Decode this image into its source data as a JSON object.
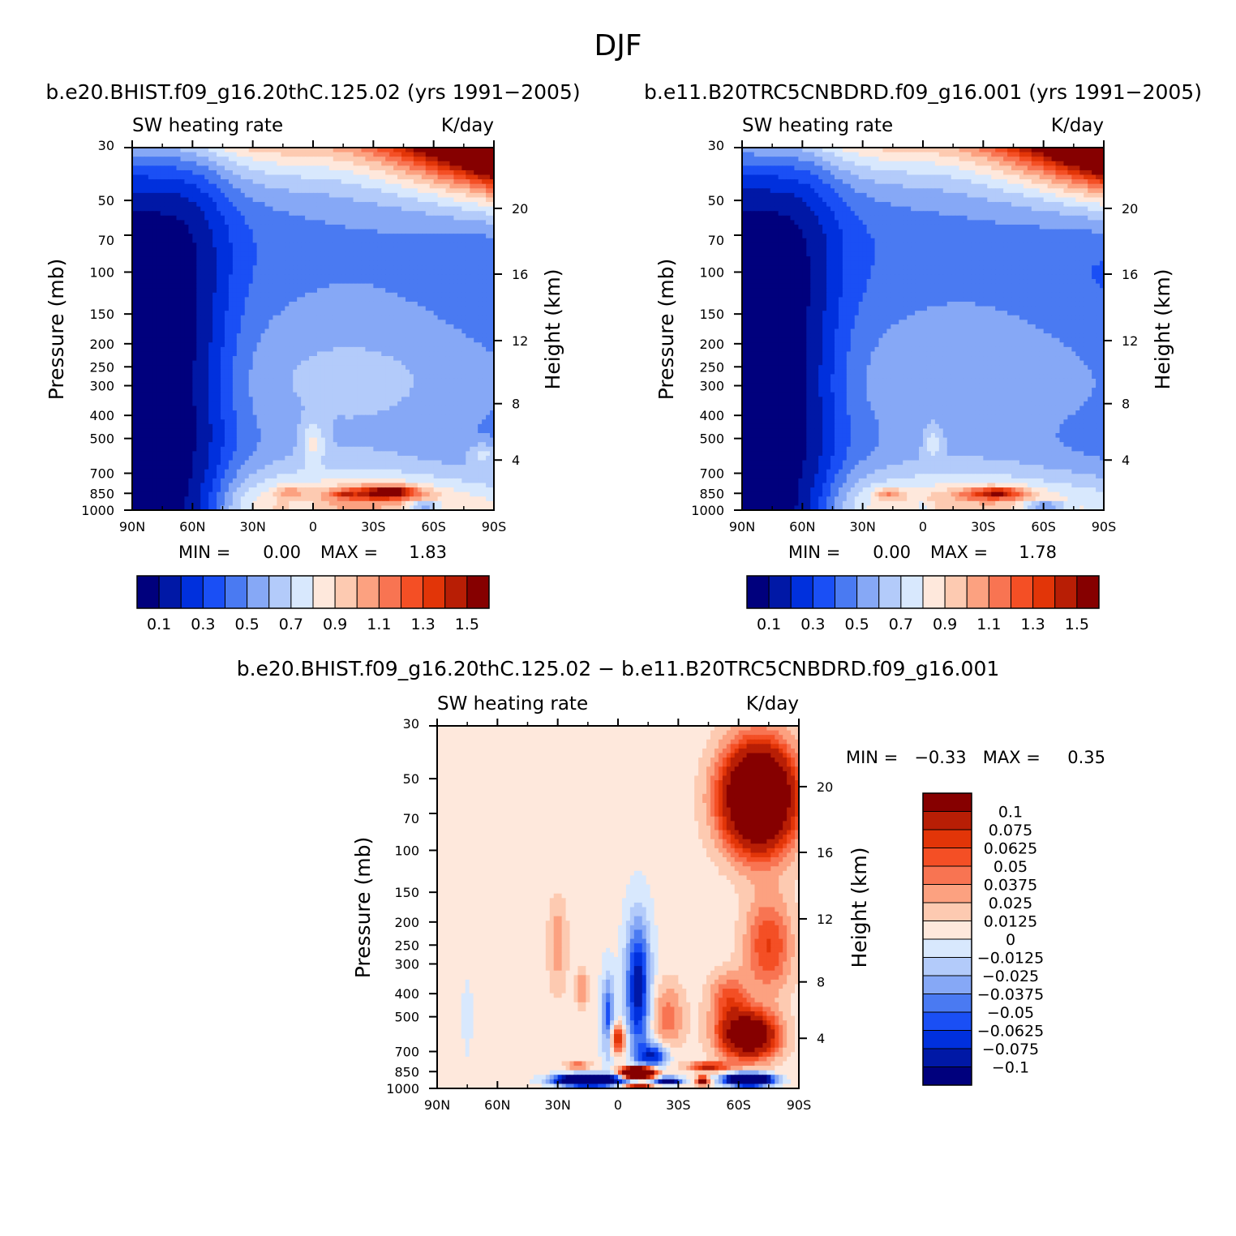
{
  "figure": {
    "super_title": "DJF",
    "bottom_stats_text": "MIN =   −0.33   MAX =     0.35"
  },
  "chart_data": [
    {
      "type": "heatmap",
      "id": "left",
      "title": "b.e20.BHIST.f09_g16.20thC.125.02 (yrs 1991−2005)",
      "left_label": "SW heating rate",
      "right_label": "K/day",
      "ylabel": "Pressure (mb)",
      "y2label": "Height (km)",
      "x_ticks": [
        "90N",
        "60N",
        "30N",
        "0",
        "30S",
        "60S",
        "90S"
      ],
      "x_values": [
        90,
        60,
        30,
        0,
        -30,
        -60,
        -90
      ],
      "xlim": [
        90,
        -90
      ],
      "y_scale": "log",
      "ylim": [
        1000,
        30
      ],
      "y_ticks": [
        30,
        50,
        70,
        100,
        150,
        200,
        250,
        300,
        400,
        500,
        700,
        850,
        1000
      ],
      "y2_ticks": [
        {
          "label": "20",
          "pressure": 54
        },
        {
          "label": "16",
          "pressure": 102
        },
        {
          "label": "12",
          "pressure": 194
        },
        {
          "label": "8",
          "pressure": 357
        },
        {
          "label": "4",
          "pressure": 616
        }
      ],
      "stats": {
        "min_label": "MIN =",
        "min": "0.00",
        "max_label": "MAX =",
        "max": "1.83"
      },
      "levels": [
        0.1,
        0.2,
        0.3,
        0.4,
        0.5,
        0.6,
        0.7,
        0.8,
        0.9,
        1.0,
        1.1,
        1.2,
        1.3,
        1.4,
        1.5
      ],
      "colorbar_labels": [
        "0.1",
        "0.3",
        "0.5",
        "0.7",
        "0.9",
        "1.1",
        "1.3",
        "1.5"
      ],
      "colors": [
        "#00007d",
        "#0018a6",
        "#0030dd",
        "#1a4ff5",
        "#4a7af2",
        "#86a8f6",
        "#b3cbfa",
        "#d8e8fd",
        "#fee8dc",
        "#fdcab1",
        "#fca180",
        "#f87452",
        "#f44f25",
        "#e23508",
        "#b81e05",
        "#860000"
      ],
      "features": [
        {
          "kind": "upper_heat",
          "amp": 2.4
        },
        {
          "kind": "deep_band",
          "amp": 1.0
        },
        {
          "kind": "blob",
          "lat": -33,
          "p": 850,
          "slat": 20,
          "sp": 65,
          "amp": 0.6
        },
        {
          "kind": "blob",
          "lat": -40,
          "p": 830,
          "slat": 9,
          "sp": 38,
          "amp": 0.35
        },
        {
          "kind": "blob",
          "lat": -15,
          "p": 860,
          "slat": 5,
          "sp": 30,
          "amp": 0.25
        },
        {
          "kind": "blob",
          "lat": 12,
          "p": 840,
          "slat": 7,
          "sp": 45,
          "amp": 0.25
        },
        {
          "kind": "blob",
          "lat": 0,
          "p": 520,
          "slat": 6,
          "sp": 110,
          "amp": 0.25
        },
        {
          "kind": "blob",
          "lat": -85,
          "p": 580,
          "slat": 8,
          "sp": 70,
          "amp": 0.2
        },
        {
          "kind": "blob",
          "lat": -55,
          "p": 960,
          "slat": 8,
          "sp": 40,
          "amp": -0.45
        },
        {
          "kind": "blob",
          "lat": 5,
          "p": 960,
          "slat": 6,
          "sp": 35,
          "amp": -0.2
        }
      ]
    },
    {
      "type": "heatmap",
      "id": "right",
      "title": "b.e11.B20TRC5CNBDRD.f09_g16.001 (yrs 1991−2005)",
      "left_label": "SW heating rate",
      "right_label": "K/day",
      "ylabel": "Pressure (mb)",
      "y2label": "Height (km)",
      "x_ticks": [
        "90N",
        "60N",
        "30N",
        "0",
        "30S",
        "60S",
        "90S"
      ],
      "x_values": [
        90,
        60,
        30,
        0,
        -30,
        -60,
        -90
      ],
      "xlim": [
        90,
        -90
      ],
      "y_scale": "log",
      "ylim": [
        1000,
        30
      ],
      "y_ticks": [
        30,
        50,
        70,
        100,
        150,
        200,
        250,
        300,
        400,
        500,
        700,
        850,
        1000
      ],
      "y2_ticks": [
        {
          "label": "20",
          "pressure": 54
        },
        {
          "label": "16",
          "pressure": 102
        },
        {
          "label": "12",
          "pressure": 194
        },
        {
          "label": "8",
          "pressure": 357
        },
        {
          "label": "4",
          "pressure": 616
        }
      ],
      "stats": {
        "min_label": "MIN =",
        "min": "0.00",
        "max_label": "MAX =",
        "max": "1.78"
      },
      "levels": [
        0.1,
        0.2,
        0.3,
        0.4,
        0.5,
        0.6,
        0.7,
        0.8,
        0.9,
        1.0,
        1.1,
        1.2,
        1.3,
        1.4,
        1.5
      ],
      "colorbar_labels": [
        "0.1",
        "0.3",
        "0.5",
        "0.7",
        "0.9",
        "1.1",
        "1.3",
        "1.5"
      ],
      "colors": [
        "#00007d",
        "#0018a6",
        "#0030dd",
        "#1a4ff5",
        "#4a7af2",
        "#86a8f6",
        "#b3cbfa",
        "#d8e8fd",
        "#fee8dc",
        "#fdcab1",
        "#fca180",
        "#f87452",
        "#f44f25",
        "#e23508",
        "#b81e05",
        "#860000"
      ],
      "features": [
        {
          "kind": "upper_heat",
          "amp": 2.3
        },
        {
          "kind": "deep_band",
          "amp": 0.95
        },
        {
          "kind": "blob",
          "lat": -35,
          "p": 855,
          "slat": 18,
          "sp": 60,
          "amp": 0.5
        },
        {
          "kind": "blob",
          "lat": -38,
          "p": 840,
          "slat": 7,
          "sp": 30,
          "amp": 0.3
        },
        {
          "kind": "blob",
          "lat": 17,
          "p": 855,
          "slat": 7,
          "sp": 45,
          "amp": 0.3
        },
        {
          "kind": "blob",
          "lat": -5,
          "p": 520,
          "slat": 5,
          "sp": 90,
          "amp": 0.2
        },
        {
          "kind": "blob",
          "lat": -60,
          "p": 960,
          "slat": 10,
          "sp": 40,
          "amp": -0.45
        },
        {
          "kind": "blob",
          "lat": 0,
          "p": 960,
          "slat": 6,
          "sp": 35,
          "amp": -0.2
        }
      ]
    },
    {
      "type": "heatmap",
      "id": "diff",
      "title": "b.e20.BHIST.f09_g16.20thC.125.02 − b.e11.B20TRC5CNBDRD.f09_g16.001",
      "left_label": "SW heating rate",
      "right_label": "K/day",
      "ylabel": "Pressure (mb)",
      "y2label": "Height (km)",
      "x_ticks": [
        "90N",
        "60N",
        "30N",
        "0",
        "30S",
        "60S",
        "90S"
      ],
      "x_values": [
        90,
        60,
        30,
        0,
        -30,
        -60,
        -90
      ],
      "xlim": [
        90,
        -90
      ],
      "y_scale": "log",
      "ylim": [
        1000,
        30
      ],
      "y_ticks": [
        30,
        50,
        70,
        100,
        150,
        200,
        250,
        300,
        400,
        500,
        700,
        850,
        1000
      ],
      "y2_ticks": [
        {
          "label": "20",
          "pressure": 54
        },
        {
          "label": "16",
          "pressure": 102
        },
        {
          "label": "12",
          "pressure": 194
        },
        {
          "label": "8",
          "pressure": 357
        },
        {
          "label": "4",
          "pressure": 616
        }
      ],
      "stats": {
        "min": -0.33,
        "max": 0.35
      },
      "levels": [
        -0.1,
        -0.075,
        -0.0625,
        -0.05,
        -0.0375,
        -0.025,
        -0.0125,
        0,
        0.0125,
        0.025,
        0.0375,
        0.05,
        0.0625,
        0.075,
        0.1
      ],
      "colorbar_labels": [
        "0.1",
        "0.075",
        "0.0625",
        "0.05",
        "0.0375",
        "0.025",
        "0.0125",
        "0",
        "−0.0125",
        "−0.025",
        "−0.0375",
        "−0.05",
        "−0.0625",
        "−0.075",
        "−0.1"
      ],
      "colors": [
        "#00007d",
        "#0018a6",
        "#0030dd",
        "#1a4ff5",
        "#4a7af2",
        "#86a8f6",
        "#b3cbfa",
        "#d8e8fd",
        "#fee8dc",
        "#fdcab1",
        "#fca180",
        "#f87452",
        "#f44f25",
        "#e23508",
        "#b81e05",
        "#860000"
      ],
      "features": [
        {
          "kind": "baseline",
          "amp": 0.004
        },
        {
          "kind": "blob",
          "lat": 75,
          "p": 500,
          "slat": 4,
          "sp": 400,
          "amp": -0.006
        },
        {
          "kind": "blob",
          "lat": -70,
          "p": 60,
          "slat": 18,
          "sp": 40,
          "amp": 0.2
        },
        {
          "kind": "blob",
          "lat": -75,
          "p": 250,
          "slat": 12,
          "sp": 150,
          "amp": 0.06
        },
        {
          "kind": "blob",
          "lat": -65,
          "p": 600,
          "slat": 14,
          "sp": 150,
          "amp": 0.15
        },
        {
          "kind": "blob",
          "lat": -55,
          "p": 420,
          "slat": 10,
          "sp": 120,
          "amp": 0.05
        },
        {
          "kind": "blob",
          "lat": -10,
          "p": 380,
          "slat": 6,
          "sp": 350,
          "amp": -0.09
        },
        {
          "kind": "blob",
          "lat": -18,
          "p": 730,
          "slat": 7,
          "sp": 90,
          "amp": -0.08
        },
        {
          "kind": "blob",
          "lat": 5,
          "p": 500,
          "slat": 3,
          "sp": 250,
          "amp": -0.06
        },
        {
          "kind": "blob",
          "lat": -25,
          "p": 500,
          "slat": 8,
          "sp": 200,
          "amp": 0.04
        },
        {
          "kind": "blob",
          "lat": 0,
          "p": 620,
          "slat": 4,
          "sp": 90,
          "amp": 0.08
        },
        {
          "kind": "blob",
          "lat": 30,
          "p": 250,
          "slat": 5,
          "sp": 150,
          "amp": 0.03
        },
        {
          "kind": "blob",
          "lat": 18,
          "p": 380,
          "slat": 3,
          "sp": 80,
          "amp": 0.035
        },
        {
          "kind": "blob",
          "lat": -10,
          "p": 860,
          "slat": 7,
          "sp": 45,
          "amp": 0.35
        },
        {
          "kind": "blob",
          "lat": -45,
          "p": 810,
          "slat": 10,
          "sp": 35,
          "amp": 0.08
        },
        {
          "kind": "blob",
          "lat": 20,
          "p": 800,
          "slat": 6,
          "sp": 30,
          "amp": 0.05
        },
        {
          "kind": "blob",
          "lat": 15,
          "p": 925,
          "slat": 14,
          "sp": 45,
          "amp": -0.3
        },
        {
          "kind": "blob",
          "lat": -65,
          "p": 920,
          "slat": 10,
          "sp": 50,
          "amp": -0.3
        },
        {
          "kind": "blob",
          "lat": -25,
          "p": 930,
          "slat": 6,
          "sp": 30,
          "amp": -0.15
        },
        {
          "kind": "blob",
          "lat": -42,
          "p": 930,
          "slat": 3,
          "sp": 40,
          "amp": 0.12
        },
        {
          "kind": "blob",
          "lat": -10,
          "p": 990,
          "slat": 6,
          "sp": 20,
          "amp": 0.15
        }
      ]
    }
  ]
}
